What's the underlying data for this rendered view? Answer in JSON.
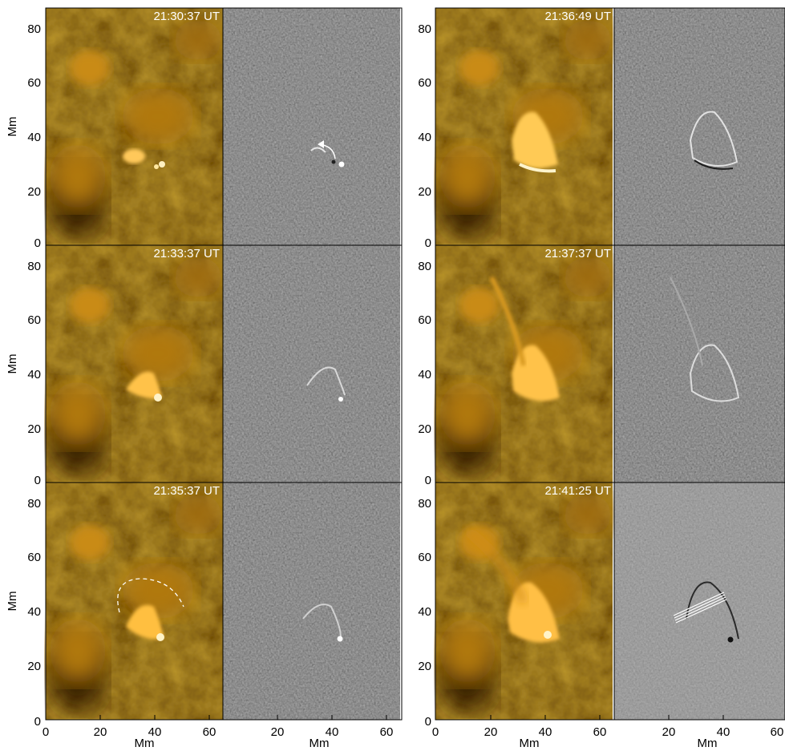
{
  "figure": {
    "y_axis_label": "Mm",
    "x_axis_label": "Mm",
    "y_ticks": [
      "0",
      "20",
      "40",
      "60",
      "80"
    ],
    "x_ticks_left": [
      "0",
      "20",
      "40",
      "60"
    ],
    "x_ticks_right": [
      "20",
      "40",
      "60"
    ],
    "timestamps": {
      "left_top": "21:30:37 UT",
      "left_mid": "21:33:37 UT",
      "left_bot": "21:35:37 UT",
      "right_top": "21:36:49 UT",
      "right_mid": "21:37:37 UT",
      "right_bot": "21:41:25 UT"
    },
    "colors": {
      "aia_base": "#7a5200",
      "aia_bright": "#ffd27a",
      "diff_base": "#6f6f6f",
      "annotation": "#ffffff"
    }
  }
}
